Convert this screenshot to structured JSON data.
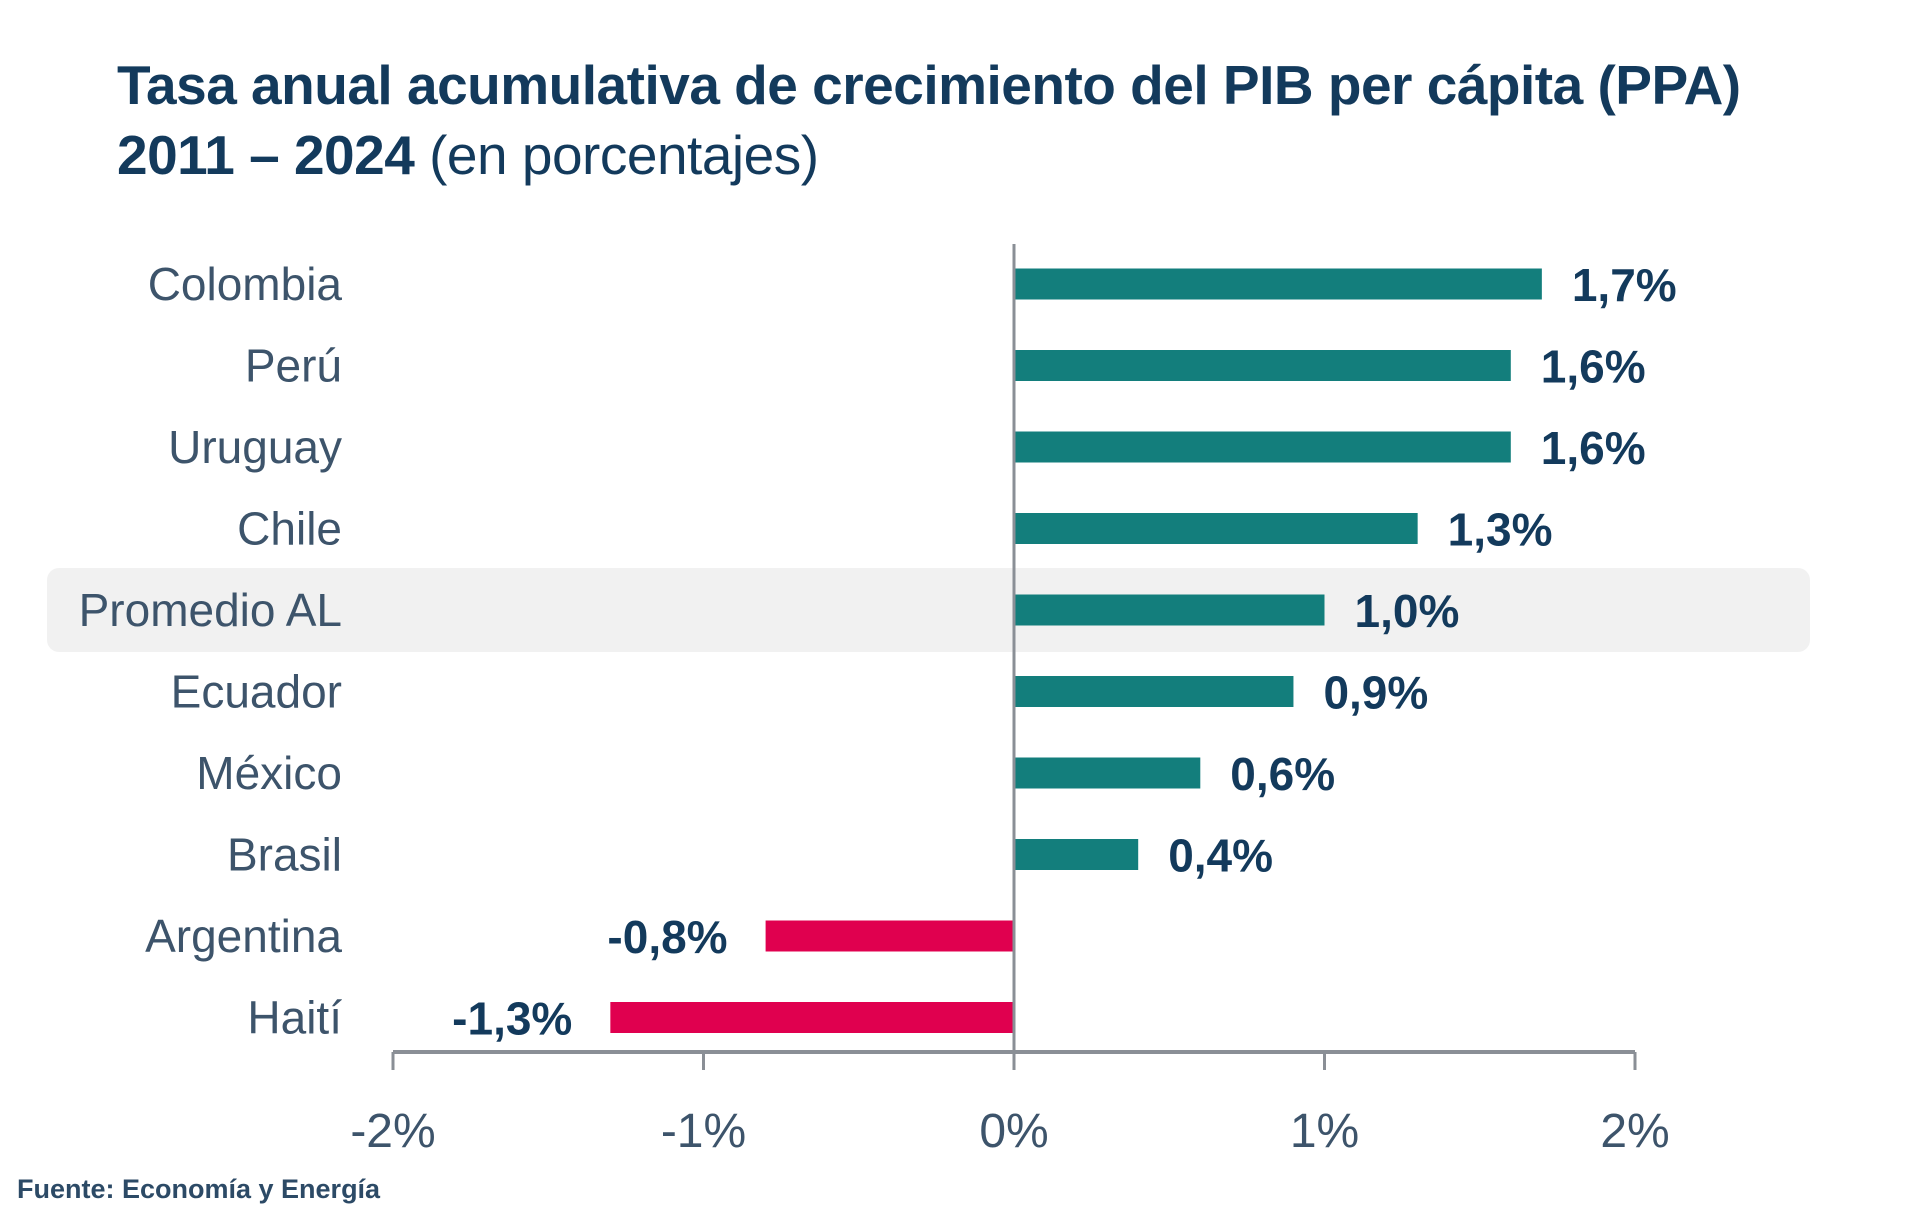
{
  "title_line1": "Tasa anual acumulativa de crecimiento del PIB per cápita (PPA)",
  "title_line2_bold": "2011 – 2024",
  "title_line2_light": "(en porcentajes)",
  "source": "Fuente: Economía y Energía",
  "chart_data": {
    "type": "bar",
    "orientation": "horizontal",
    "categories": [
      "Colombia",
      "Perú",
      "Uruguay",
      "Chile",
      "Promedio AL",
      "Ecuador",
      "México",
      "Brasil",
      "Argentina",
      "Haití"
    ],
    "values": [
      1.7,
      1.6,
      1.6,
      1.3,
      1.0,
      0.9,
      0.6,
      0.4,
      -0.8,
      -1.3
    ],
    "data_labels": [
      "1,7%",
      "1,6%",
      "1,6%",
      "1,3%",
      "1,0%",
      "0,9%",
      "0,6%",
      "0,4%",
      "-0,8%",
      "-1,3%"
    ],
    "highlighted_category": "Promedio AL",
    "xlim": [
      -2,
      2
    ],
    "xticks": [
      -2,
      -1,
      0,
      1,
      2
    ],
    "xtick_labels": [
      "-2%",
      "-1%",
      "0%",
      "1%",
      "2%"
    ],
    "grid": false,
    "colors": {
      "positive": "#137e7c",
      "negative": "#e0004f",
      "highlight_band": "#f1f1f1",
      "axis": "#8a8f96",
      "label_text": "#3d546b",
      "value_text": "#133a5c"
    }
  }
}
